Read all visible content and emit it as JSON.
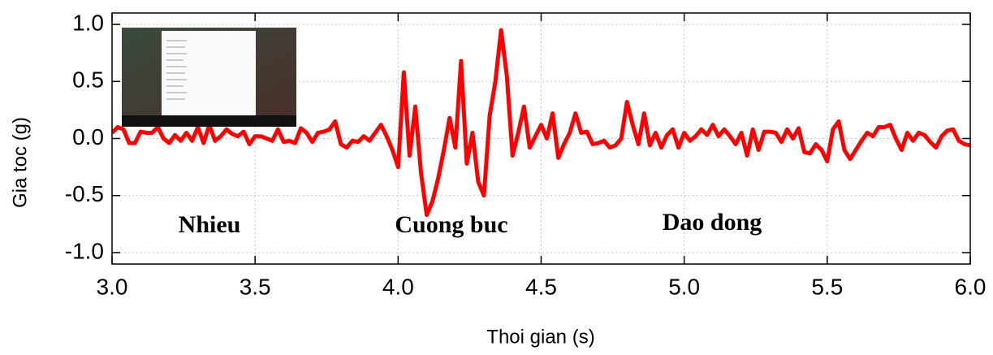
{
  "chart_data": {
    "type": "line",
    "x_label": "Thoi gian (s)",
    "y_label": "Gia toc (g)",
    "annotations": [
      "Nhieu",
      "Cuong buc",
      "Dao dong"
    ],
    "xlim": [
      3,
      6
    ],
    "ylim": [
      -1.1,
      1.1
    ],
    "xticks": [
      {
        "value": 3,
        "label": "3.0"
      },
      3.5,
      {
        "value": 4,
        "label": "4.0"
      },
      4.5,
      {
        "value": 5,
        "label": "5.0"
      },
      5.5,
      {
        "value": 6,
        "label": "6.0"
      }
    ],
    "yticks": [
      {
        "value": -1,
        "label": "-1.0"
      },
      -0.5,
      {
        "value": 0,
        "label": "0.0"
      },
      0.5,
      {
        "value": 1,
        "label": "1.0"
      }
    ],
    "grid": true,
    "x": [
      3.0,
      3.02,
      3.04,
      3.06,
      3.08,
      3.1,
      3.12,
      3.14,
      3.16,
      3.18,
      3.2,
      3.22,
      3.24,
      3.26,
      3.28,
      3.3,
      3.32,
      3.34,
      3.36,
      3.38,
      3.4,
      3.42,
      3.44,
      3.46,
      3.48,
      3.5,
      3.52,
      3.54,
      3.56,
      3.58,
      3.6,
      3.62,
      3.64,
      3.66,
      3.68,
      3.7,
      3.72,
      3.74,
      3.76,
      3.78,
      3.8,
      3.82,
      3.84,
      3.86,
      3.88,
      3.9,
      3.92,
      3.94,
      3.96,
      3.98,
      4.0,
      4.02,
      4.04,
      4.06,
      4.08,
      4.1,
      4.12,
      4.14,
      4.16,
      4.18,
      4.2,
      4.22,
      4.24,
      4.26,
      4.28,
      4.3,
      4.32,
      4.34,
      4.36,
      4.38,
      4.4,
      4.42,
      4.44,
      4.46,
      4.48,
      4.5,
      4.52,
      4.54,
      4.56,
      4.58,
      4.6,
      4.62,
      4.64,
      4.66,
      4.68,
      4.7,
      4.72,
      4.74,
      4.76,
      4.78,
      4.8,
      4.82,
      4.84,
      4.86,
      4.88,
      4.9,
      4.92,
      4.94,
      4.96,
      4.98,
      5.0,
      5.02,
      5.04,
      5.06,
      5.08,
      5.1,
      5.12,
      5.14,
      5.16,
      5.18,
      5.2,
      5.22,
      5.24,
      5.26,
      5.28,
      5.3,
      5.32,
      5.34,
      5.36,
      5.38,
      5.4,
      5.42,
      5.44,
      5.46,
      5.48,
      5.5,
      5.52,
      5.54,
      5.56,
      5.58,
      5.6,
      5.62,
      5.64,
      5.66,
      5.68,
      5.7,
      5.72,
      5.74,
      5.76,
      5.78,
      5.8,
      5.82,
      5.84,
      5.86,
      5.88,
      5.9,
      5.92,
      5.94,
      5.96,
      5.98,
      6.0
    ],
    "series": [
      {
        "color": "#ff0000",
        "values": [
          0.05,
          0.1,
          0.08,
          -0.04,
          -0.04,
          0.06,
          0.05,
          0.05,
          0.1,
          0.0,
          -0.04,
          0.03,
          -0.02,
          0.05,
          -0.02,
          0.1,
          -0.04,
          0.12,
          -0.02,
          0.02,
          0.08,
          0.04,
          0.02,
          0.06,
          -0.05,
          0.02,
          0.02,
          0.0,
          -0.02,
          0.08,
          -0.03,
          -0.02,
          -0.04,
          0.09,
          0.05,
          -0.03,
          0.05,
          0.06,
          0.08,
          0.15,
          -0.05,
          -0.08,
          -0.02,
          -0.03,
          0.02,
          -0.02,
          0.05,
          0.12,
          0.02,
          -0.1,
          -0.25,
          0.58,
          -0.15,
          0.28,
          -0.3,
          -0.67,
          -0.55,
          -0.35,
          -0.1,
          0.18,
          -0.08,
          0.68,
          -0.22,
          0.05,
          -0.38,
          -0.5,
          0.2,
          0.5,
          0.95,
          0.55,
          -0.15,
          0.05,
          0.28,
          -0.08,
          0.02,
          0.12,
          0.0,
          0.22,
          -0.17,
          -0.05,
          0.05,
          0.22,
          0.05,
          0.06,
          -0.05,
          -0.04,
          -0.02,
          -0.08,
          -0.06,
          0.0,
          0.32,
          0.12,
          -0.05,
          0.22,
          -0.06,
          0.05,
          -0.08,
          0.03,
          0.08,
          -0.08,
          0.05,
          -0.02,
          0.02,
          0.08,
          0.03,
          0.12,
          0.02,
          0.08,
          0.02,
          -0.05,
          0.05,
          -0.15,
          0.08,
          -0.1,
          0.06,
          0.06,
          0.05,
          -0.03,
          0.08,
          0.0,
          0.09,
          -0.12,
          -0.13,
          -0.05,
          -0.1,
          -0.2,
          0.08,
          0.15,
          -0.1,
          -0.18,
          -0.1,
          -0.02,
          0.05,
          0.02,
          0.1,
          0.1,
          0.12,
          0.0,
          -0.1,
          0.05,
          -0.02,
          0.05,
          0.03,
          -0.03,
          -0.08,
          0.02,
          0.07,
          0.08,
          -0.02,
          -0.05,
          -0.06
        ]
      }
    ]
  }
}
